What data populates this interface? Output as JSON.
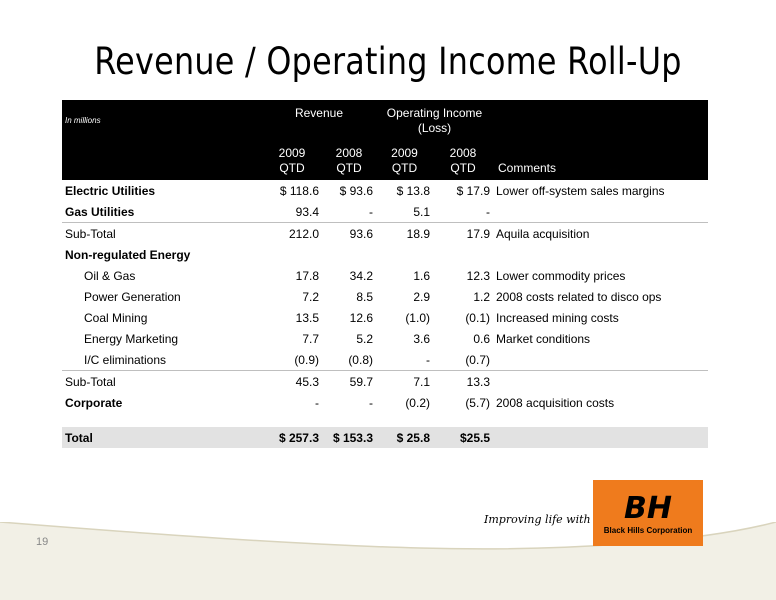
{
  "title": "Revenue / Operating Income Roll-Up",
  "header": {
    "units_note": "In millions",
    "revenue_label": "Revenue",
    "op_income_label": "Operating Income (Loss)",
    "col1": "2009 QTD",
    "col2": "2008 QTD",
    "col3": "2009 QTD",
    "col4": "2008 QTD",
    "comments": "Comments"
  },
  "rows": [
    {
      "label": "Electric Utilities",
      "c1": "$ 118.6",
      "c2": "$ 93.6",
      "c3": "$ 13.8",
      "c4": "$ 17.9",
      "comment": "Lower off-system sales margins"
    },
    {
      "label": "Gas Utilities",
      "c1": "93.4",
      "c2": "-",
      "c3": "5.1",
      "c4": "-",
      "comment": ""
    },
    {
      "label": "Sub-Total",
      "c1": "212.0",
      "c2": "93.6",
      "c3": "18.9",
      "c4": "17.9",
      "comment": "Aquila acquisition"
    },
    {
      "label": "Non-regulated Energy",
      "c1": "",
      "c2": "",
      "c3": "",
      "c4": "",
      "comment": ""
    },
    {
      "label": "Oil & Gas",
      "c1": "17.8",
      "c2": "34.2",
      "c3": "1.6",
      "c4": "12.3",
      "comment": "Lower commodity prices"
    },
    {
      "label": "Power Generation",
      "c1": "7.2",
      "c2": "8.5",
      "c3": "2.9",
      "c4": "1.2",
      "comment": "2008 costs related to disco ops"
    },
    {
      "label": "Coal Mining",
      "c1": "13.5",
      "c2": "12.6",
      "c3": "(1.0)",
      "c4": "(0.1)",
      "comment": "Increased mining costs"
    },
    {
      "label": "Energy Marketing",
      "c1": "7.7",
      "c2": "5.2",
      "c3": "3.6",
      "c4": "0.6",
      "comment": "Market conditions"
    },
    {
      "label": "I/C eliminations",
      "c1": "(0.9)",
      "c2": "(0.8)",
      "c3": "-",
      "c4": "(0.7)",
      "comment": ""
    },
    {
      "label": "Sub-Total",
      "c1": "45.3",
      "c2": "59.7",
      "c3": "7.1",
      "c4": "13.3",
      "comment": ""
    },
    {
      "label": "Corporate",
      "c1": "-",
      "c2": "-",
      "c3": "(0.2)",
      "c4": "(5.7)",
      "comment": "2008 acquisition costs"
    },
    {
      "label": "Total",
      "c1": "$ 257.3",
      "c2": "$ 153.3",
      "c3": "$ 25.8",
      "c4": "$25.5",
      "comment": ""
    }
  ],
  "footer": {
    "page_number": "19",
    "tagline": "Improving life with energy",
    "logo_mark": "BH",
    "logo_text": "Black Hills Corporation"
  },
  "colors": {
    "brand_orange": "#ef7b1d",
    "header_bg": "#000000",
    "total_bg": "#e2e2e2"
  }
}
